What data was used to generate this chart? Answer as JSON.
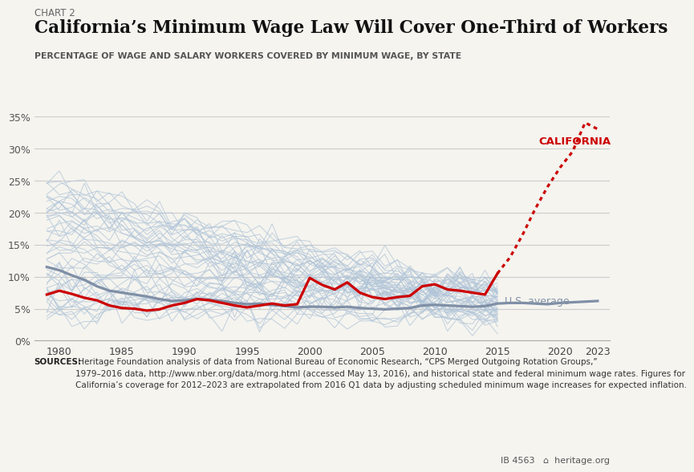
{
  "chart_label": "CHART 2",
  "title": "California’s Minimum Wage Law Will Cover One-Third of Workers",
  "subtitle": "PERCENTAGE OF WAGE AND SALARY WORKERS COVERED BY MINIMUM WAGE, BY STATE",
  "xlim": [
    1978,
    2024
  ],
  "ylim": [
    0,
    35
  ],
  "yticks": [
    0,
    5,
    10,
    15,
    20,
    25,
    30,
    35
  ],
  "xticks": [
    1980,
    1985,
    1990,
    1995,
    2000,
    2005,
    2010,
    2015,
    2020,
    2023
  ],
  "background_color": "#f5f4ef",
  "plot_bg_color": "#f5f4ef",
  "grid_color": "#cccccc",
  "california_color": "#cc0000",
  "us_avg_color": "#7f8fa6",
  "state_line_color": "#b0c4d8",
  "california_solid_years": [
    1979,
    1980,
    1981,
    1982,
    1983,
    1984,
    1985,
    1986,
    1987,
    1988,
    1989,
    1990,
    1991,
    1992,
    1993,
    1994,
    1995,
    1996,
    1997,
    1998,
    1999,
    2000,
    2001,
    2002,
    2003,
    2004,
    2005,
    2006,
    2007,
    2008,
    2009,
    2010,
    2011,
    2012,
    2013,
    2014,
    2015
  ],
  "california_solid_values": [
    7.2,
    7.8,
    7.3,
    6.7,
    6.3,
    5.5,
    5.1,
    5.0,
    4.7,
    4.9,
    5.5,
    5.9,
    6.5,
    6.3,
    5.9,
    5.5,
    5.2,
    5.5,
    5.8,
    5.5,
    5.7,
    9.8,
    8.7,
    8.0,
    9.1,
    7.5,
    6.8,
    6.5,
    6.8,
    7.0,
    8.5,
    8.8,
    8.0,
    7.8,
    7.5,
    7.2,
    10.5
  ],
  "california_dotted_years": [
    2015,
    2016,
    2017,
    2018,
    2019,
    2020,
    2021,
    2022,
    2023
  ],
  "california_dotted_values": [
    10.5,
    13.0,
    16.5,
    20.5,
    24.0,
    27.0,
    29.5,
    34.0,
    33.0
  ],
  "us_avg_years": [
    1979,
    1980,
    1981,
    1982,
    1983,
    1984,
    1985,
    1986,
    1987,
    1988,
    1989,
    1990,
    1991,
    1992,
    1993,
    1994,
    1995,
    1996,
    1997,
    1998,
    1999,
    2000,
    2001,
    2002,
    2003,
    2004,
    2005,
    2006,
    2007,
    2008,
    2009,
    2010,
    2011,
    2012,
    2013,
    2014,
    2015,
    2016,
    2017,
    2018,
    2019,
    2020,
    2021,
    2022,
    2023
  ],
  "us_avg_values": [
    11.5,
    11.0,
    10.2,
    9.5,
    8.5,
    7.8,
    7.5,
    7.2,
    6.9,
    6.5,
    6.2,
    6.3,
    6.5,
    6.4,
    6.2,
    5.9,
    5.7,
    5.8,
    5.6,
    5.4,
    5.2,
    5.3,
    5.3,
    5.2,
    5.3,
    5.1,
    5.0,
    4.9,
    5.0,
    5.1,
    5.5,
    5.6,
    5.5,
    5.4,
    5.3,
    5.4,
    5.8,
    5.9,
    5.9,
    5.8,
    5.7,
    5.9,
    6.0,
    6.1,
    6.2
  ],
  "sources_bold": "SOURCES:",
  "sources_text": " Heritage Foundation analysis of data from National Bureau of Economic Research, “CPS Merged Outgoing Rotation Groups,”\n1979–2016 data, http://www.nber.org/data/morg.html (accessed May 13, 2016), and historical state and federal minimum wage rates. Figures for\nCalifornia’s coverage for 2012–2023 are extrapolated from 2016 Q1 data by adjusting scheduled minimum wage increases for expected inflation.",
  "footer_text": "IB 4563   ⌂  heritage.org"
}
